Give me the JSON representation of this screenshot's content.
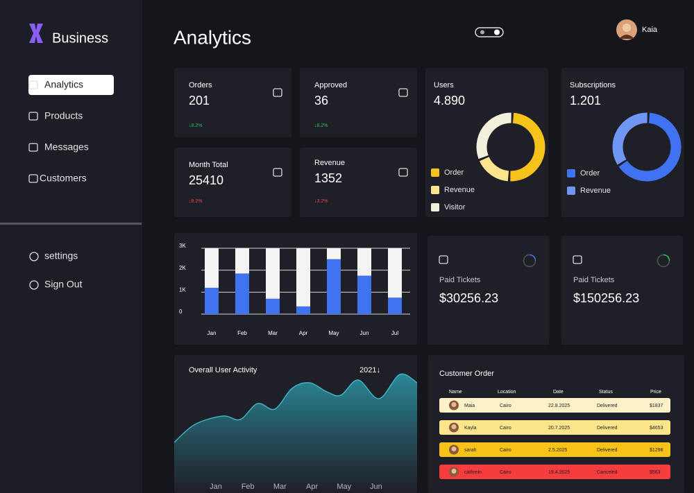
{
  "sidebar": {
    "brand": "Business",
    "nav": [
      "Analytics",
      "Products",
      "Messages",
      "Customers"
    ],
    "bottom": [
      "settings",
      "Sign Out"
    ]
  },
  "header": {
    "title": "Analytics",
    "user": "Kaia"
  },
  "stats": [
    {
      "label": "Orders",
      "value": "201",
      "change": "↓8.2%",
      "change_color": "#22c55e"
    },
    {
      "label": "Approved",
      "value": "36",
      "change": "↓8.2%",
      "change_color": "#22c55e"
    },
    {
      "label": "Month Total",
      "value": "25410",
      "change": "↓8.2%",
      "change_color": "#ef4444"
    },
    {
      "label": "Revenue",
      "value": "1352",
      "change": "↓3.2%",
      "change_color": "#ef4444"
    }
  ],
  "tickets": [
    {
      "label": "Paid Tickets",
      "amount": "$30256.23"
    },
    {
      "label": "Paid Tickets",
      "amount": "$150256.23"
    }
  ],
  "orders": {
    "title": "Customer Order",
    "columns": [
      "Name",
      "Location",
      "Date",
      "Status",
      "Price"
    ],
    "rows": [
      [
        "Maia",
        "Cairo",
        "22.8.2025",
        "Delivered",
        "$1837"
      ],
      [
        "Kayla",
        "Cairo",
        "20.7.2025",
        "Delivered",
        "$4653"
      ],
      [
        "sarah",
        "Cairo",
        "2.5.2025",
        "Delivered",
        "$1298"
      ],
      [
        "cathrein",
        "Cairo",
        "19.4.2025",
        "Canceled",
        "$563"
      ]
    ],
    "row_colors": [
      "#fdf1c7",
      "#fde68a",
      "#f8c316",
      "#f63c3c"
    ]
  },
  "chart_data": [
    {
      "type": "donut",
      "title": "Users",
      "total": "4.890",
      "categories": [
        "Order",
        "Revenue",
        "Visitor"
      ],
      "values": [
        50,
        18,
        32
      ],
      "colors": [
        "#f6c31a",
        "#fbe48e",
        "#f3f0dc"
      ]
    },
    {
      "type": "donut",
      "title": "Subscriptions",
      "total": "1.201",
      "categories": [
        "Order",
        "Revenue"
      ],
      "values": [
        65,
        35
      ],
      "colors": [
        "#3f73f2",
        "#6f96f3"
      ]
    },
    {
      "type": "bar",
      "stacked": true,
      "categories": [
        "Jan",
        "Feb",
        "Mar",
        "Apr",
        "May",
        "Jun",
        "Jul"
      ],
      "series": [
        {
          "color": "#3f73f2",
          "values": [
            1200,
            1850,
            700,
            350,
            2500,
            1750,
            750
          ]
        },
        {
          "color": "#f4f4f4",
          "values": [
            1800,
            1150,
            2300,
            2650,
            500,
            1250,
            2250
          ]
        }
      ],
      "ylim": [
        0,
        3000
      ],
      "yticks": [
        0,
        {
          "value": 1000,
          "label": "1K"
        },
        {
          "value": 2000,
          "label": "2K"
        },
        {
          "value": 3000,
          "label": "3K"
        }
      ],
      "grid": true
    },
    {
      "type": "area",
      "title": "Overall User Activity",
      "subtitle": "2021↓",
      "x": [
        -0.3,
        0.35,
        1.22,
        1.76,
        2.3,
        2.84,
        3.38,
        3.92,
        4.46,
        4.9,
        5.44,
        6.09,
        6.74,
        7.28
      ],
      "values": [
        73,
        99,
        111,
        106,
        129,
        121,
        151,
        159,
        146,
        141,
        163,
        136,
        171,
        159
      ],
      "xlim": [
        -0.3,
        7.28
      ],
      "ylim": [
        0,
        200
      ],
      "xticks": [
        {
          "value": 1,
          "label": "Jan"
        },
        {
          "value": 2,
          "label": "Feb"
        },
        {
          "value": 3,
          "label": "Mar"
        },
        {
          "value": 4,
          "label": "Apr"
        },
        {
          "value": 5,
          "label": "May"
        },
        {
          "value": 6,
          "label": "Jun"
        }
      ],
      "color": "#3bb4c4"
    }
  ]
}
